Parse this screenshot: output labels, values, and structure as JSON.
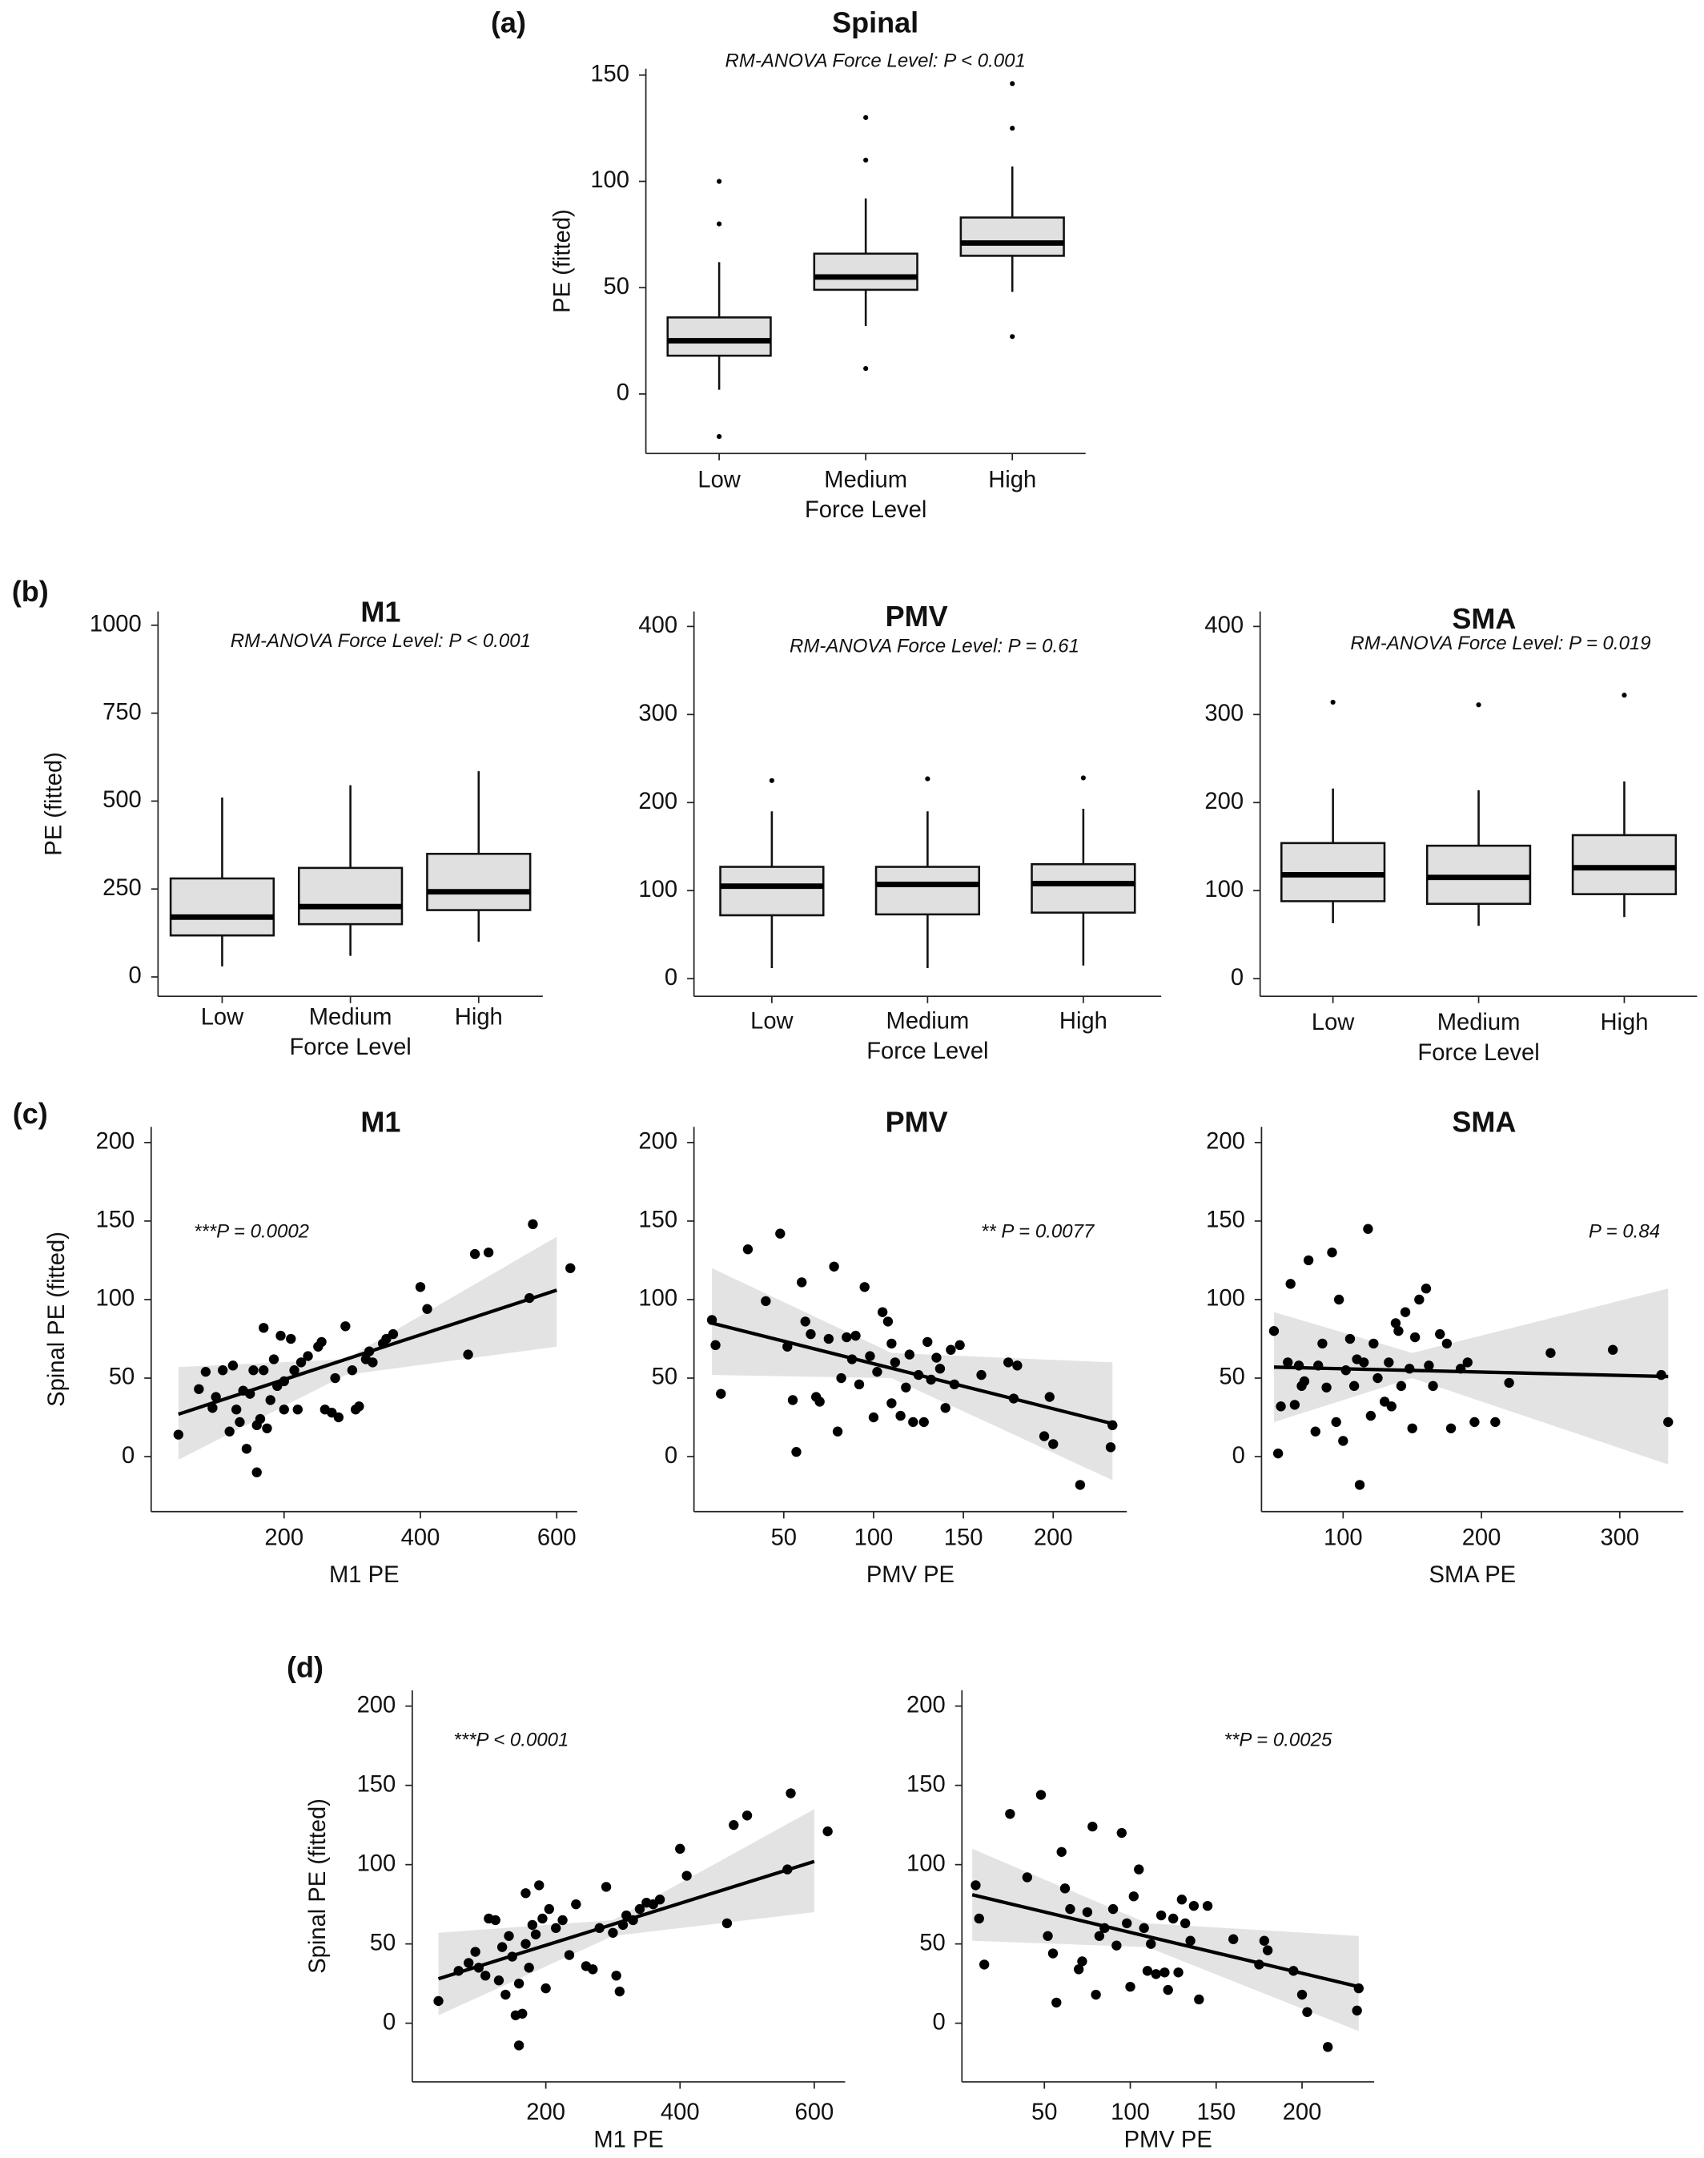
{
  "chart_data": [
    {
      "type": "box",
      "panel_label": "(a)",
      "title": "Spinal",
      "subtitle": "RM-ANOVA Force Level: P < 0.001",
      "y_label": "PE (fitted)",
      "x_label": "Force Level",
      "categories": [
        "Low",
        "Medium",
        "High"
      ],
      "ylim": [
        -28,
        153
      ],
      "yticks": [
        0,
        50,
        100,
        150
      ],
      "color": "#e0e0e0",
      "boxes": [
        {
          "whisker_low": 2,
          "q1": 18,
          "median": 25,
          "q3": 36,
          "whisker_high": 62,
          "outliers": [
            -20,
            80,
            100
          ]
        },
        {
          "whisker_low": 32,
          "q1": 49,
          "median": 55,
          "q3": 66,
          "whisker_high": 92,
          "outliers": [
            12,
            110,
            130
          ]
        },
        {
          "whisker_low": 48,
          "q1": 65,
          "median": 71,
          "q3": 83,
          "whisker_high": 107,
          "outliers": [
            27,
            125,
            146
          ]
        }
      ]
    },
    {
      "type": "box",
      "panel_label": "(b)",
      "title": "M1",
      "subtitle": "RM-ANOVA Force Level: P < 0.001",
      "y_label": "PE (fitted)",
      "x_label": "Force Level",
      "categories": [
        "Low",
        "Medium",
        "High"
      ],
      "ylim": [
        -55,
        1039
      ],
      "yticks": [
        0,
        250,
        500,
        750,
        1000
      ],
      "color": "#e0e0e0",
      "boxes": [
        {
          "whisker_low": 30,
          "q1": 118,
          "median": 170,
          "q3": 280,
          "whisker_high": 510,
          "outliers": []
        },
        {
          "whisker_low": 60,
          "q1": 150,
          "median": 200,
          "q3": 310,
          "whisker_high": 545,
          "outliers": []
        },
        {
          "whisker_low": 100,
          "q1": 190,
          "median": 242,
          "q3": 350,
          "whisker_high": 585,
          "outliers": []
        }
      ]
    },
    {
      "type": "box",
      "title": "PMV",
      "subtitle": "RM-ANOVA Force Level: P = 0.61",
      "x_label": "Force Level",
      "categories": [
        "Low",
        "Medium",
        "High"
      ],
      "ylim": [
        -20,
        417
      ],
      "yticks": [
        0,
        100,
        200,
        300,
        400
      ],
      "color": "#e0e0e0",
      "boxes": [
        {
          "whisker_low": 12,
          "q1": 72,
          "median": 105,
          "q3": 127,
          "whisker_high": 190,
          "outliers": [
            225
          ]
        },
        {
          "whisker_low": 12,
          "q1": 73,
          "median": 107,
          "q3": 127,
          "whisker_high": 190,
          "outliers": [
            227
          ]
        },
        {
          "whisker_low": 15,
          "q1": 75,
          "median": 108,
          "q3": 130,
          "whisker_high": 193,
          "outliers": [
            228
          ]
        }
      ]
    },
    {
      "type": "box",
      "title": "SMA",
      "subtitle": "RM-ANOVA Force Level: P = 0.019",
      "x_label": "Force Level",
      "categories": [
        "Low",
        "Medium",
        "High"
      ],
      "ylim": [
        -20,
        417
      ],
      "yticks": [
        0,
        100,
        200,
        300,
        400
      ],
      "color": "#e0e0e0",
      "boxes": [
        {
          "whisker_low": 63,
          "q1": 88,
          "median": 118,
          "q3": 154,
          "whisker_high": 216,
          "outliers": [
            314
          ]
        },
        {
          "whisker_low": 60,
          "q1": 85,
          "median": 115,
          "q3": 151,
          "whisker_high": 214,
          "outliers": [
            311
          ]
        },
        {
          "whisker_low": 70,
          "q1": 96,
          "median": 126,
          "q3": 163,
          "whisker_high": 224,
          "outliers": [
            322
          ]
        }
      ]
    },
    {
      "type": "scatter",
      "panel_label": "(c)",
      "title": "M1",
      "annotation": "***P = 0.0002",
      "x_label": "M1 PE",
      "y_label": "Spinal PE (fitted)",
      "xlim": [
        5,
        630
      ],
      "ylim": [
        -35,
        210
      ],
      "xticks": [
        200,
        400,
        600
      ],
      "yticks": [
        0,
        50,
        100,
        150,
        200
      ],
      "color": "#000000",
      "band_color": "#e3e3e3",
      "x": [
        45,
        75,
        85,
        95,
        100,
        110,
        120,
        125,
        130,
        135,
        140,
        145,
        150,
        155,
        160,
        160,
        165,
        170,
        170,
        175,
        180,
        185,
        190,
        195,
        200,
        200,
        210,
        215,
        220,
        225,
        235,
        250,
        255,
        260,
        270,
        275,
        280,
        290,
        300,
        305,
        310,
        320,
        325,
        330,
        345,
        350,
        360,
        400,
        410,
        470,
        480,
        500,
        560,
        565,
        620
      ],
      "y": [
        14,
        43,
        54,
        31,
        38,
        55,
        16,
        58,
        30,
        22,
        42,
        5,
        40,
        55,
        -10,
        20,
        24,
        82,
        55,
        18,
        36,
        62,
        45,
        77,
        48,
        30,
        75,
        55,
        30,
        60,
        64,
        70,
        73,
        30,
        28,
        50,
        25,
        83,
        55,
        30,
        32,
        62,
        67,
        60,
        72,
        75,
        78,
        108,
        94,
        65,
        129,
        130,
        101,
        148,
        120
      ],
      "fit_x": [
        45,
        600
      ],
      "fit_y": [
        27,
        106
      ],
      "band_x": [
        45,
        290,
        600
      ],
      "band_lower": [
        -2,
        52,
        70
      ],
      "band_upper": [
        57,
        62,
        140
      ]
    },
    {
      "type": "scatter",
      "title": "PMV",
      "annotation": "** P = 0.0077",
      "x_label": "PMV PE",
      "xlim": [
        0,
        241
      ],
      "ylim": [
        -35,
        210
      ],
      "xticks": [
        50,
        100,
        150,
        200
      ],
      "yticks": [
        0,
        50,
        100,
        150,
        200
      ],
      "color": "#000000",
      "band_color": "#e3e3e3",
      "x": [
        10,
        12,
        15,
        30,
        40,
        48,
        52,
        55,
        57,
        60,
        62,
        65,
        68,
        70,
        75,
        78,
        80,
        82,
        85,
        88,
        90,
        92,
        95,
        98,
        100,
        102,
        105,
        108,
        110,
        110,
        112,
        115,
        118,
        120,
        122,
        125,
        128,
        130,
        132,
        135,
        137,
        140,
        143,
        145,
        148,
        160,
        175,
        178,
        180,
        195,
        198,
        200,
        215,
        232,
        233
      ],
      "y": [
        87,
        71,
        40,
        132,
        99,
        142,
        70,
        36,
        3,
        111,
        86,
        78,
        38,
        35,
        75,
        121,
        16,
        50,
        76,
        62,
        77,
        46,
        108,
        64,
        25,
        54,
        92,
        86,
        34,
        72,
        60,
        26,
        44,
        65,
        22,
        52,
        22,
        73,
        49,
        63,
        56,
        31,
        68,
        46,
        71,
        52,
        60,
        37,
        58,
        13,
        38,
        8,
        -18,
        6,
        20
      ],
      "fit_x": [
        10,
        233
      ],
      "fit_y": [
        85,
        21
      ],
      "band_x": [
        10,
        110,
        233
      ],
      "band_lower": [
        52,
        50,
        -15
      ],
      "band_upper": [
        120,
        66,
        60
      ]
    },
    {
      "type": "scatter",
      "title": "SMA",
      "annotation": "P = 0.84",
      "x_label": "SMA PE",
      "xlim": [
        41,
        346
      ],
      "ylim": [
        -35,
        210
      ],
      "xticks": [
        100,
        200,
        300
      ],
      "yticks": [
        0,
        50,
        100,
        150,
        200
      ],
      "color": "#000000",
      "band_color": "#e3e3e3",
      "x": [
        50,
        53,
        55,
        60,
        62,
        65,
        68,
        70,
        72,
        75,
        80,
        82,
        85,
        88,
        92,
        95,
        97,
        100,
        102,
        105,
        108,
        110,
        112,
        115,
        118,
        120,
        122,
        125,
        130,
        133,
        135,
        138,
        140,
        142,
        145,
        148,
        150,
        152,
        155,
        160,
        162,
        165,
        170,
        175,
        178,
        185,
        190,
        195,
        210,
        220,
        250,
        295,
        330,
        335
      ],
      "y": [
        80,
        2,
        32,
        60,
        110,
        33,
        58,
        45,
        48,
        125,
        16,
        58,
        72,
        44,
        130,
        22,
        100,
        10,
        55,
        75,
        45,
        62,
        -18,
        60,
        145,
        26,
        72,
        50,
        35,
        60,
        32,
        85,
        80,
        45,
        92,
        56,
        18,
        76,
        100,
        107,
        58,
        45,
        78,
        72,
        18,
        56,
        60,
        22,
        22,
        47,
        66,
        68,
        52,
        22
      ],
      "fit_x": [
        50,
        335
      ],
      "fit_y": [
        57,
        51
      ],
      "band_x": [
        50,
        150,
        335
      ],
      "band_lower": [
        22,
        50,
        -5
      ],
      "band_upper": [
        92,
        66,
        107
      ]
    },
    {
      "type": "scatter",
      "panel_label": "(d)",
      "annotation": "***P < 0.0001",
      "x_label": "M1 PE",
      "y_label": "Spinal PE (fitted)",
      "xlim": [
        1,
        646
      ],
      "ylim": [
        -37,
        210
      ],
      "xticks": [
        200,
        400,
        600
      ],
      "yticks": [
        0,
        50,
        100,
        150,
        200
      ],
      "color": "#000000",
      "band_color": "#e3e3e3",
      "x": [
        40,
        70,
        85,
        95,
        100,
        110,
        115,
        125,
        130,
        135,
        140,
        145,
        150,
        155,
        160,
        160,
        165,
        170,
        170,
        175,
        180,
        185,
        190,
        195,
        200,
        205,
        215,
        225,
        235,
        245,
        260,
        270,
        280,
        290,
        300,
        305,
        310,
        315,
        320,
        330,
        340,
        350,
        360,
        370,
        400,
        410,
        470,
        480,
        500,
        560,
        565,
        620
      ],
      "y": [
        14,
        33,
        38,
        45,
        35,
        30,
        66,
        65,
        27,
        48,
        18,
        55,
        42,
        5,
        -14,
        25,
        6,
        82,
        50,
        35,
        62,
        56,
        87,
        66,
        22,
        72,
        60,
        65,
        43,
        75,
        36,
        34,
        60,
        86,
        57,
        30,
        20,
        62,
        68,
        65,
        72,
        76,
        75,
        78,
        110,
        93,
        63,
        125,
        131,
        97,
        145,
        121
      ],
      "fit_x": [
        40,
        600
      ],
      "fit_y": [
        28,
        102
      ],
      "band_x": [
        40,
        300,
        600
      ],
      "band_lower": [
        5,
        55,
        70
      ],
      "band_upper": [
        57,
        65,
        135
      ]
    },
    {
      "type": "scatter",
      "annotation": "**P = 0.0025",
      "x_label": "PMV PE",
      "xlim": [
        2,
        242
      ],
      "ylim": [
        -37,
        210
      ],
      "xticks": [
        50,
        100,
        150,
        200
      ],
      "yticks": [
        0,
        50,
        100,
        150,
        200
      ],
      "color": "#000000",
      "band_color": "#e3e3e3",
      "x": [
        10,
        12,
        15,
        30,
        40,
        48,
        52,
        55,
        57,
        60,
        62,
        65,
        70,
        72,
        75,
        78,
        80,
        82,
        85,
        90,
        92,
        95,
        98,
        100,
        102,
        105,
        108,
        110,
        112,
        115,
        118,
        120,
        122,
        125,
        128,
        130,
        132,
        135,
        137,
        140,
        145,
        160,
        175,
        178,
        180,
        195,
        200,
        203,
        215,
        232,
        233
      ],
      "y": [
        87,
        66,
        37,
        132,
        92,
        144,
        55,
        44,
        13,
        108,
        85,
        72,
        34,
        39,
        70,
        124,
        18,
        55,
        60,
        72,
        49,
        120,
        63,
        23,
        80,
        97,
        60,
        33,
        50,
        31,
        68,
        32,
        21,
        66,
        32,
        78,
        63,
        52,
        74,
        15,
        74,
        53,
        37,
        52,
        46,
        33,
        18,
        7,
        -15,
        8,
        22
      ],
      "fit_x": [
        8,
        233
      ],
      "fit_y": [
        81,
        23
      ],
      "band_x": [
        8,
        110,
        233
      ],
      "band_lower": [
        52,
        48,
        -5
      ],
      "band_upper": [
        110,
        63,
        55
      ]
    }
  ]
}
